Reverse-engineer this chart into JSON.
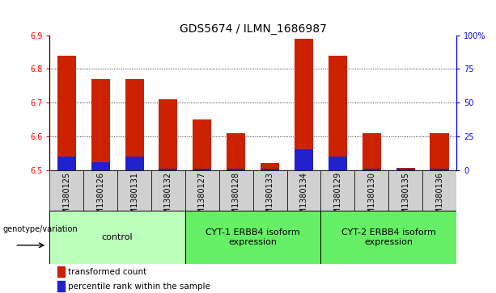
{
  "title": "GDS5674 / ILMN_1686987",
  "samples": [
    "GSM1380125",
    "GSM1380126",
    "GSM1380131",
    "GSM1380132",
    "GSM1380127",
    "GSM1380128",
    "GSM1380133",
    "GSM1380134",
    "GSM1380129",
    "GSM1380130",
    "GSM1380135",
    "GSM1380136"
  ],
  "red_values": [
    6.84,
    6.77,
    6.77,
    6.71,
    6.65,
    6.61,
    6.52,
    6.89,
    6.84,
    6.61,
    6.505,
    6.61
  ],
  "blue_percentiles": [
    10,
    6,
    10,
    1,
    1,
    1,
    1,
    15,
    10,
    1,
    1,
    1
  ],
  "y_min": 6.5,
  "y_max": 6.9,
  "y_ticks": [
    6.5,
    6.6,
    6.7,
    6.8,
    6.9
  ],
  "y2_ticks": [
    0,
    25,
    50,
    75,
    100
  ],
  "y2_labels": [
    "0",
    "25",
    "50",
    "75",
    "100%"
  ],
  "bar_color_red": "#cc2200",
  "bar_color_blue": "#2222cc",
  "bar_width": 0.55,
  "background_plot": "#ffffff",
  "sample_header_color": "#d0d0d0",
  "group_spans": [
    {
      "start": 0,
      "end": 3,
      "label": "control",
      "color": "#bbffbb"
    },
    {
      "start": 4,
      "end": 7,
      "label": "CYT-1 ERBB4 isoform\nexpression",
      "color": "#66ee66"
    },
    {
      "start": 8,
      "end": 11,
      "label": "CYT-2 ERBB4 isoform\nexpression",
      "color": "#66ee66"
    }
  ],
  "legend_red": "transformed count",
  "legend_blue": "percentile rank within the sample",
  "genotype_label": "genotype/variation",
  "title_fontsize": 10,
  "tick_fontsize": 7,
  "label_fontsize": 7,
  "group_fontsize": 8
}
